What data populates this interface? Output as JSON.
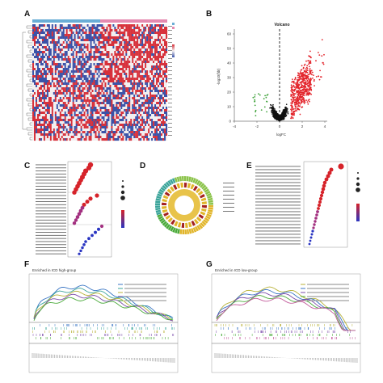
{
  "panels": {
    "A": {
      "label": "A"
    },
    "B": {
      "label": "B",
      "title": "Volcano",
      "xlabel": "logFC",
      "ylabel": "-log10(fdr)",
      "xticks": [
        "-4",
        "-2",
        "0",
        "2",
        "4"
      ],
      "yticks": [
        "0",
        "10",
        "20",
        "30",
        "40",
        "50",
        "60"
      ]
    },
    "C": {
      "label": "C"
    },
    "D": {
      "label": "D"
    },
    "E": {
      "label": "E"
    },
    "F": {
      "label": "F",
      "title": "Enriched in ICD high-group"
    },
    "G": {
      "label": "G",
      "title": "Enriched in ICD low-group"
    }
  },
  "colors": {
    "heat_red": "#d7303a",
    "heat_blue": "#3a52a8",
    "heat_white": "#f2eff0",
    "volcano_up": "#e3242b",
    "volcano_down": "#3fa23a",
    "volcano_ns": "#111111",
    "dot_red": "#d6232a",
    "dot_blue": "#2a35c2",
    "gsea_blue": "#3a76c4",
    "gsea_teal": "#3aa49a",
    "gsea_olive": "#b8b23a",
    "gsea_purple": "#7a4aa8",
    "gsea_green": "#4aaa3a",
    "gsea_pink": "#c25a9a"
  }
}
